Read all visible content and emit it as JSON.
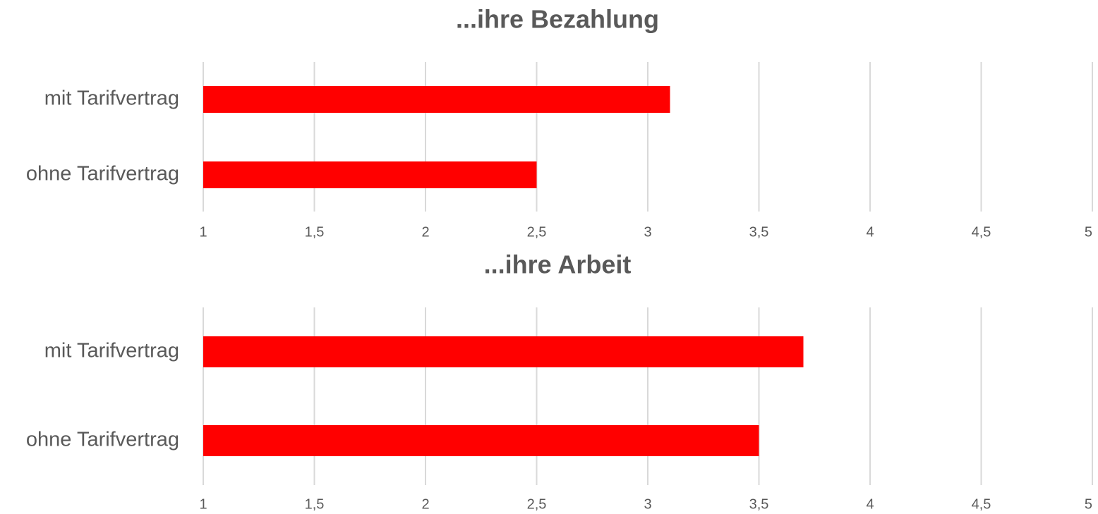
{
  "chart_data": [
    {
      "type": "bar",
      "orientation": "horizontal",
      "title": "...ihre Bezahlung",
      "categories": [
        "mit Tarifvertrag",
        "ohne Tarifvertrag"
      ],
      "values": [
        3.1,
        2.5
      ],
      "color": "#ff0000",
      "xlim": [
        1,
        5
      ],
      "xticks": [
        1,
        {
          "value": 1.5,
          "label": "1,5"
        },
        2,
        {
          "value": 2.5,
          "label": "2,5"
        },
        3,
        {
          "value": 3.5,
          "label": "3,5"
        },
        4,
        {
          "value": 4.5,
          "label": "4,5"
        },
        5
      ],
      "grid": true
    },
    {
      "type": "bar",
      "orientation": "horizontal",
      "title": "...ihre Arbeit",
      "categories": [
        "mit Tarifvertrag",
        "ohne Tarifvertrag"
      ],
      "values": [
        3.7,
        3.5
      ],
      "color": "#ff0000",
      "xlim": [
        1,
        5
      ],
      "xticks": [
        1,
        {
          "value": 1.5,
          "label": "1,5"
        },
        2,
        {
          "value": 2.5,
          "label": "2,5"
        },
        3,
        {
          "value": 3.5,
          "label": "3,5"
        },
        4,
        {
          "value": 4.5,
          "label": "4,5"
        },
        5
      ],
      "grid": true
    }
  ]
}
